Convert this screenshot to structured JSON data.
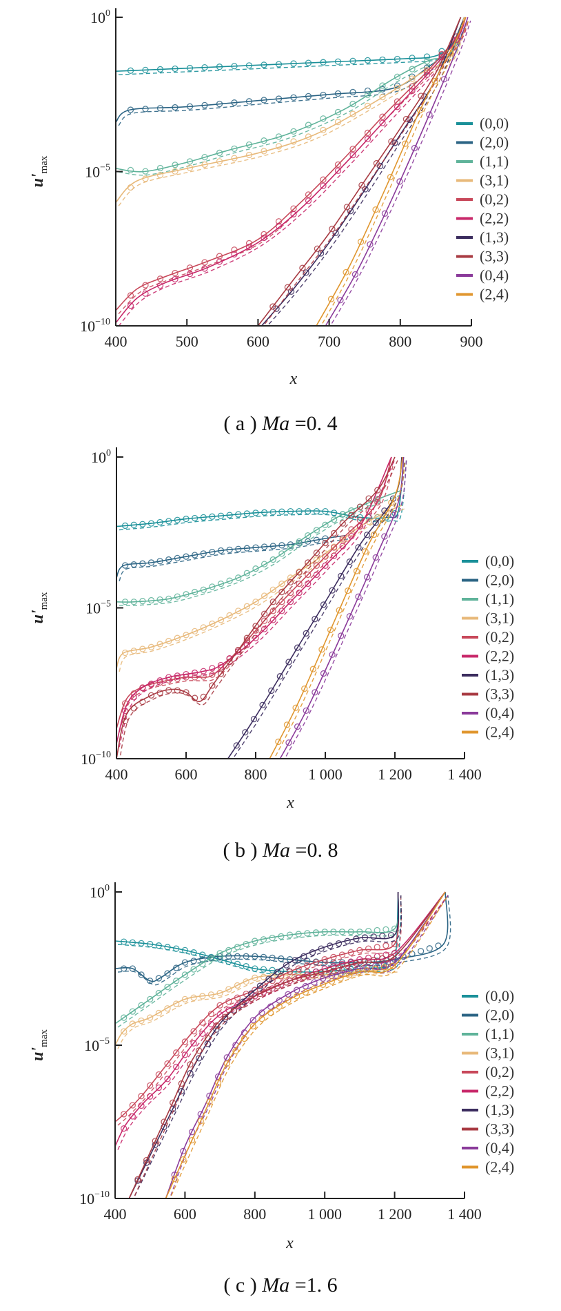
{
  "chart_data": [
    {
      "type": "line",
      "panel": "a",
      "caption": {
        "prefix": "( a )",
        "var": "Ma",
        "eq": "=",
        "value": "0. 4"
      },
      "xlabel": "x",
      "ylabel": "u'max",
      "yscale": "log",
      "xlim": [
        400,
        900
      ],
      "ylim_log10": [
        -10,
        0
      ],
      "xticks": [
        "400",
        "500",
        "600",
        "700",
        "800",
        "900"
      ],
      "xtick_values": [
        400,
        500,
        600,
        700,
        800,
        900
      ],
      "yticks": [
        {
          "exp": "0",
          "value": 0
        },
        {
          "exp": "−5",
          "value": -5
        },
        {
          "exp": "−10",
          "value": -10
        }
      ],
      "legend_position": "right",
      "series": [
        {
          "name": "(0,0)",
          "color": "#1a9099",
          "x": [
            400,
            500,
            600,
            700,
            800,
            850,
            875,
            890
          ],
          "log10_y": [
            -1.75,
            -1.65,
            -1.55,
            -1.45,
            -1.35,
            -1.25,
            -0.8,
            0
          ]
        },
        {
          "name": "(2,0)",
          "color": "#2b6484",
          "x": [
            400,
            420,
            500,
            600,
            700,
            790,
            840,
            870,
            890
          ],
          "log10_y": [
            -3.4,
            -3.0,
            -2.9,
            -2.7,
            -2.5,
            -2.3,
            -1.6,
            -1.0,
            0
          ]
        },
        {
          "name": "(1,1)",
          "color": "#5fb39a",
          "x": [
            400,
            440,
            500,
            560,
            640,
            720,
            790,
            840,
            870,
            890
          ],
          "log10_y": [
            -4.9,
            -5.0,
            -4.7,
            -4.3,
            -3.8,
            -3.0,
            -2.0,
            -1.4,
            -1.2,
            0
          ]
        },
        {
          "name": "(3,1)",
          "color": "#e8b97a",
          "x": [
            400,
            430,
            500,
            600,
            680,
            760,
            830,
            870,
            890
          ],
          "log10_y": [
            -6.0,
            -5.3,
            -4.9,
            -4.4,
            -3.8,
            -2.8,
            -1.8,
            -1.3,
            0
          ]
        },
        {
          "name": "(0,2)",
          "color": "#c8485a",
          "x": [
            400,
            430,
            470,
            530,
            600,
            660,
            720,
            780,
            840,
            880,
            892
          ],
          "log10_y": [
            -9.5,
            -8.8,
            -8.4,
            -7.9,
            -7.2,
            -6.0,
            -4.6,
            -3.1,
            -1.7,
            -0.6,
            0
          ]
        },
        {
          "name": "(2,2)",
          "color": "#c8286a",
          "x": [
            400,
            430,
            470,
            530,
            600,
            660,
            720,
            780,
            840,
            880,
            892
          ],
          "log10_y": [
            -9.9,
            -9.1,
            -8.6,
            -8.1,
            -7.3,
            -6.2,
            -4.8,
            -3.3,
            -1.8,
            -0.7,
            0
          ]
        },
        {
          "name": "(1,3)",
          "color": "#3b2c5e",
          "x": [
            605,
            650,
            700,
            750,
            800,
            850,
            885
          ],
          "log10_y": [
            -10,
            -8.8,
            -7.3,
            -5.6,
            -3.8,
            -2.0,
            0
          ]
        },
        {
          "name": "(3,3)",
          "color": "#a83a42",
          "x": [
            600,
            650,
            700,
            750,
            800,
            850,
            885
          ],
          "log10_y": [
            -10,
            -8.5,
            -7.0,
            -5.3,
            -3.6,
            -1.8,
            0
          ]
        },
        {
          "name": "(0,4)",
          "color": "#8a3a9a",
          "x": [
            695,
            740,
            790,
            840,
            880,
            895
          ],
          "log10_y": [
            -10,
            -8.2,
            -5.8,
            -3.2,
            -1.0,
            0
          ]
        },
        {
          "name": "(2,4)",
          "color": "#e0962e",
          "x": [
            682,
            730,
            780,
            830,
            875,
            892
          ],
          "log10_y": [
            -10,
            -8.0,
            -5.5,
            -2.9,
            -0.9,
            0
          ]
        }
      ]
    },
    {
      "type": "line",
      "panel": "b",
      "caption": {
        "prefix": "( b )",
        "var": "Ma",
        "eq": "=",
        "value": "0. 8"
      },
      "xlabel": "x",
      "ylabel": "u'max",
      "yscale": "log",
      "xlim": [
        400,
        1400
      ],
      "ylim_log10": [
        -10,
        0
      ],
      "xticks": [
        "400",
        "600",
        "800",
        "1 000",
        "1 200",
        "1 400"
      ],
      "xtick_values": [
        400,
        600,
        800,
        1000,
        1200,
        1400
      ],
      "yticks": [
        {
          "exp": "0",
          "value": 0
        },
        {
          "exp": "−5",
          "value": -5
        },
        {
          "exp": "−10",
          "value": -10
        }
      ],
      "legend_position": "right",
      "series": [
        {
          "name": "(0,0)",
          "color": "#1a9099",
          "x": [
            400,
            500,
            600,
            700,
            800,
            900,
            1000,
            1100,
            1180,
            1210,
            1225
          ],
          "log10_y": [
            -2.3,
            -2.2,
            -2.05,
            -1.95,
            -1.85,
            -1.8,
            -1.8,
            -2.0,
            -2.0,
            -1.8,
            0
          ]
        },
        {
          "name": "(2,0)",
          "color": "#2b6484",
          "x": [
            400,
            420,
            500,
            600,
            700,
            800,
            900,
            1000,
            1060
          ],
          "log10_y": [
            -4.0,
            -3.6,
            -3.5,
            -3.3,
            -3.1,
            -3.0,
            -2.9,
            -2.7,
            -2.6
          ]
        },
        {
          "name": "(1,1)",
          "color": "#5fb39a",
          "x": [
            400,
            450,
            550,
            650,
            750,
            850,
            950,
            1050,
            1150,
            1220
          ],
          "log10_y": [
            -4.8,
            -4.8,
            -4.7,
            -4.4,
            -4.0,
            -3.4,
            -2.6,
            -1.9,
            -1.4,
            -1.1
          ]
        },
        {
          "name": "(3,1)",
          "color": "#e8b97a",
          "x": [
            400,
            420,
            500,
            600,
            700,
            800,
            900,
            1000,
            1100,
            1180,
            1220
          ],
          "log10_y": [
            -7.0,
            -6.5,
            -6.3,
            -5.9,
            -5.4,
            -4.8,
            -4.0,
            -3.2,
            -2.3,
            -1.8,
            -1.6
          ]
        },
        {
          "name": "(0,2)",
          "color": "#c8485a",
          "x": [
            400,
            430,
            480,
            550,
            600,
            640,
            680,
            750,
            850,
            950,
            1050,
            1150,
            1190
          ],
          "log10_y": [
            -9.0,
            -8.0,
            -7.6,
            -7.4,
            -7.3,
            -7.3,
            -7.2,
            -6.4,
            -5.1,
            -3.9,
            -2.7,
            -1.5,
            0
          ]
        },
        {
          "name": "(2,2)",
          "color": "#c8286a",
          "x": [
            400,
            430,
            480,
            550,
            600,
            650,
            700,
            800,
            900,
            1000,
            1100,
            1190
          ],
          "log10_y": [
            -9.5,
            -8.2,
            -7.6,
            -7.3,
            -7.2,
            -7.1,
            -6.9,
            -6.0,
            -4.8,
            -3.6,
            -2.3,
            0
          ]
        },
        {
          "name": "(1,3)",
          "color": "#3b2c5e",
          "x": [
            720,
            800,
            900,
            1000,
            1100,
            1200,
            1220
          ],
          "log10_y": [
            -10,
            -8.6,
            -6.7,
            -4.8,
            -2.9,
            -1.3,
            0
          ]
        },
        {
          "name": "(3,3)",
          "color": "#a83a42",
          "x": [
            400,
            430,
            500,
            560,
            600,
            640,
            680,
            750,
            850,
            950,
            1050,
            1150,
            1200
          ],
          "log10_y": [
            -10,
            -8.5,
            -7.9,
            -7.7,
            -7.8,
            -8.1,
            -7.5,
            -6.4,
            -4.8,
            -3.5,
            -2.2,
            -1.1,
            0
          ]
        },
        {
          "name": "(0,4)",
          "color": "#8a3a9a",
          "x": [
            870,
            950,
            1050,
            1150,
            1210,
            1225
          ],
          "log10_y": [
            -10,
            -8.3,
            -5.8,
            -3.2,
            -1.5,
            0
          ]
        },
        {
          "name": "(2,4)",
          "color": "#e0962e",
          "x": [
            840,
            920,
            1020,
            1120,
            1200,
            1222
          ],
          "log10_y": [
            -10,
            -8.2,
            -5.6,
            -3.0,
            -1.3,
            0
          ]
        }
      ]
    },
    {
      "type": "line",
      "panel": "c",
      "caption": {
        "prefix": "( c )",
        "var": "Ma",
        "eq": "=",
        "value": "1. 6"
      },
      "xlabel": "x",
      "ylabel": "u'max",
      "yscale": "log",
      "xlim": [
        400,
        1400
      ],
      "ylim_log10": [
        -10,
        0
      ],
      "xticks": [
        "400",
        "600",
        "800",
        "1 000",
        "1 200",
        "1 400"
      ],
      "xtick_values": [
        400,
        600,
        800,
        1000,
        1200,
        1400
      ],
      "yticks": [
        {
          "exp": "0",
          "value": 0
        },
        {
          "exp": "−5",
          "value": -5
        },
        {
          "exp": "−10",
          "value": -10
        }
      ],
      "legend_position": "right",
      "series": [
        {
          "name": "(0,0)",
          "color": "#1a9099",
          "x": [
            400,
            500,
            600,
            700,
            800,
            900,
            1000,
            1100,
            1190,
            1205,
            1210
          ],
          "log10_y": [
            -1.6,
            -1.7,
            -1.9,
            -2.2,
            -2.5,
            -2.6,
            -2.6,
            -2.5,
            -2.4,
            -1.8,
            0
          ]
        },
        {
          "name": "(2,0)",
          "color": "#2b6484",
          "x": [
            400,
            450,
            500,
            530,
            600,
            700,
            800,
            900,
            1000,
            1100,
            1200,
            1340,
            1345
          ],
          "log10_y": [
            -2.5,
            -2.5,
            -2.9,
            -2.8,
            -2.3,
            -2.1,
            -2.1,
            -2.2,
            -2.3,
            -2.3,
            -2.2,
            -1.7,
            0
          ]
        },
        {
          "name": "(1,1)",
          "color": "#5fb39a",
          "x": [
            400,
            450,
            500,
            600,
            700,
            800,
            900,
            1000,
            1100,
            1200,
            1210
          ],
          "log10_y": [
            -4.3,
            -3.9,
            -3.5,
            -2.7,
            -2.0,
            -1.6,
            -1.4,
            -1.3,
            -1.3,
            -1.2,
            0
          ]
        },
        {
          "name": "(3,1)",
          "color": "#e8b97a",
          "x": [
            400,
            420,
            450,
            500,
            600,
            700,
            800,
            900,
            1000,
            1100,
            1200
          ],
          "log10_y": [
            -5.0,
            -4.6,
            -4.3,
            -4.1,
            -3.5,
            -3.3,
            -2.8,
            -2.7,
            -2.7,
            -2.6,
            -2.5
          ]
        },
        {
          "name": "(0,2)",
          "color": "#c8485a",
          "x": [
            400,
            430,
            480,
            550,
            620,
            700,
            800,
            900,
            1000,
            1100,
            1200,
            1210
          ],
          "log10_y": [
            -7.5,
            -7.2,
            -6.6,
            -5.6,
            -4.6,
            -3.7,
            -3.2,
            -2.6,
            -2.2,
            -1.9,
            -1.7,
            0
          ]
        },
        {
          "name": "(2,2)",
          "color": "#c8286a",
          "x": [
            400,
            430,
            480,
            550,
            620,
            700,
            800,
            900,
            1000,
            1100,
            1200,
            1345
          ],
          "log10_y": [
            -8.3,
            -7.6,
            -6.9,
            -6.1,
            -5.0,
            -4.0,
            -3.4,
            -2.9,
            -2.5,
            -2.2,
            -2.0,
            0
          ]
        },
        {
          "name": "(1,3)",
          "color": "#3b2c5e",
          "x": [
            440,
            500,
            560,
            620,
            700,
            800,
            900,
            1000,
            1100,
            1200,
            1210
          ],
          "log10_y": [
            -10,
            -8.6,
            -7.2,
            -5.8,
            -4.3,
            -3.2,
            -2.3,
            -1.8,
            -1.5,
            -1.4,
            0
          ]
        },
        {
          "name": "(3,3)",
          "color": "#a83a42",
          "x": [
            440,
            500,
            560,
            620,
            700,
            800,
            900,
            1000,
            1100,
            1200,
            1345
          ],
          "log10_y": [
            -10,
            -8.5,
            -7.0,
            -5.5,
            -4.2,
            -3.4,
            -2.9,
            -2.6,
            -2.3,
            -2.1,
            0
          ]
        },
        {
          "name": "(0,4)",
          "color": "#8a3a9a",
          "x": [
            545,
            600,
            660,
            720,
            800,
            900,
            1000,
            1100,
            1200,
            1345
          ],
          "log10_y": [
            -10,
            -8.3,
            -6.9,
            -5.4,
            -4.1,
            -3.3,
            -2.8,
            -2.5,
            -2.3,
            0
          ]
        },
        {
          "name": "(2,4)",
          "color": "#e0962e",
          "x": [
            545,
            600,
            660,
            720,
            800,
            900,
            1000,
            1100,
            1200,
            1345
          ],
          "log10_y": [
            -10,
            -8.6,
            -7.1,
            -5.6,
            -4.3,
            -3.5,
            -3.0,
            -2.6,
            -2.4,
            0
          ]
        }
      ]
    }
  ]
}
